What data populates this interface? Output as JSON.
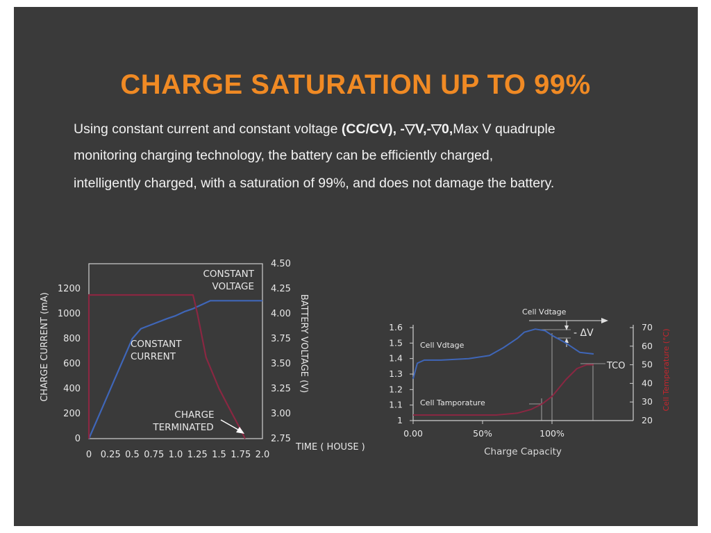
{
  "title": "CHARGE SATURATION UP TO 99%",
  "description": {
    "line1_pre": "Using constant current and constant voltage ",
    "line1_bold": "(CC/CV), -▽V,-▽0,",
    "line1_post": "Max V quadruple",
    "line2": "monitoring charging technology, the battery can be efficiently charged,",
    "line3": "intelligently charged, with a saturation of 99%, and does not damage the battery."
  },
  "colors": {
    "accent": "#f08a24",
    "blue": "#3f66b8",
    "red": "#8a2742",
    "bg": "#3a3a3a"
  },
  "chart_data": [
    {
      "type": "line",
      "title": "",
      "xlabel": "TIME ( HOUSE )",
      "ylabel": "CHARGE CURRENT (mA)",
      "y2label": "BATTERY VOLTAGE (V)",
      "xlim": [
        0,
        2.0
      ],
      "ylim": [
        0,
        1400
      ],
      "y2lim": [
        2.75,
        4.5
      ],
      "xticks": [
        "0",
        "0.25",
        "0.5",
        "0.75",
        "1.0",
        "1.25",
        "1.5",
        "1.75",
        "2.0"
      ],
      "yticks": [
        "0",
        "200",
        "400",
        "600",
        "800",
        "1000",
        "1200"
      ],
      "y2ticks": [
        "2.75",
        "3.00",
        "3.25",
        "3.50",
        "3.75",
        "4.00",
        "4.25",
        "4.50"
      ],
      "series": [
        {
          "axis": "y2",
          "color": "#3f66b8",
          "x": [
            0,
            0.15,
            0.3,
            0.45,
            0.5,
            0.6,
            0.75,
            0.9,
            1.0,
            1.1,
            1.2,
            1.4,
            1.6,
            2.0
          ],
          "y": [
            2.75,
            3.05,
            3.35,
            3.65,
            3.75,
            3.85,
            3.9,
            3.95,
            3.98,
            4.02,
            4.05,
            4.13,
            4.13,
            4.13
          ]
        },
        {
          "axis": "y",
          "color": "#8a2742",
          "x": [
            0,
            0.0,
            0.1,
            0.5,
            1.0,
            1.2,
            1.25,
            1.35,
            1.5,
            1.65,
            1.75,
            1.8
          ],
          "y": [
            0,
            1150,
            1150,
            1150,
            1150,
            1150,
            1000,
            650,
            400,
            200,
            70,
            0
          ]
        }
      ],
      "annotations": [
        "CONSTANT VOLTAGE",
        "CONSTANT CURRENT",
        "CHARGE TERMINATED"
      ]
    },
    {
      "type": "line",
      "title": "",
      "xlabel": "Charge Capacity",
      "ylabel": "",
      "y2label": "Cell Temperature (°C)",
      "xticks": [
        "0.00",
        "50%",
        "100%"
      ],
      "yticks": [
        "1",
        "1.1",
        "1.2",
        "1.3",
        "1.4",
        "1.5",
        "1.6"
      ],
      "y2ticks": [
        "20",
        "30",
        "40",
        "50",
        "60",
        "70"
      ],
      "ylim": [
        1,
        1.6
      ],
      "y2lim": [
        20,
        70
      ],
      "series": [
        {
          "name": "Cell Vdtage",
          "color": "#3f66b8",
          "x": [
            0,
            3,
            8,
            20,
            40,
            55,
            65,
            75,
            80,
            88,
            95,
            100,
            110,
            120,
            130
          ],
          "y": [
            1.27,
            1.37,
            1.39,
            1.39,
            1.4,
            1.42,
            1.47,
            1.53,
            1.57,
            1.59,
            1.58,
            1.55,
            1.5,
            1.44,
            1.43
          ]
        },
        {
          "name": "Cell Tamporature",
          "color": "#8a2742",
          "x": [
            0,
            20,
            40,
            60,
            75,
            85,
            93,
            100,
            110,
            118,
            125,
            130
          ],
          "y": [
            23,
            23,
            23,
            23,
            24,
            26,
            29,
            33,
            42,
            48,
            50,
            50
          ]
        }
      ],
      "annotations": [
        "Cell Vdtage",
        "- ΔV",
        "TCO"
      ]
    }
  ]
}
